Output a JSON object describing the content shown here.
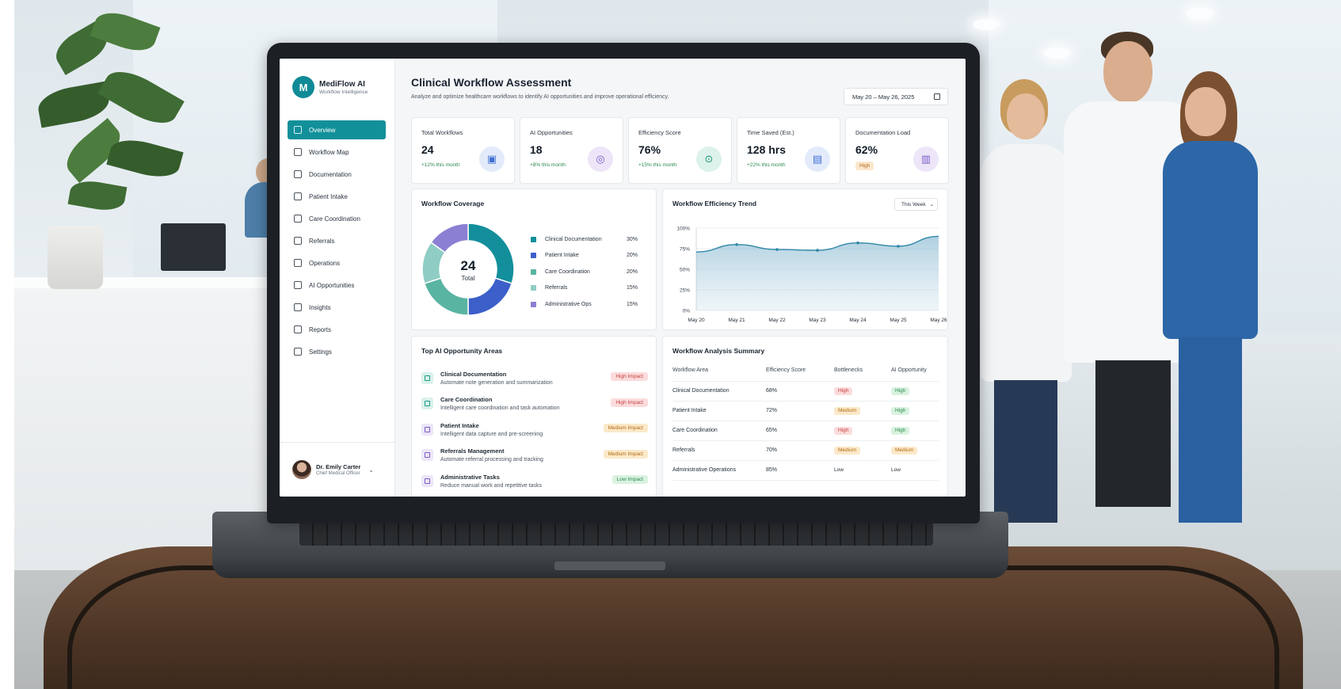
{
  "brand": {
    "name": "MediFlow AI",
    "subtitle": "Workflow Intelligence",
    "logo": "M"
  },
  "nav": [
    {
      "label": "Overview",
      "icon": "home-icon",
      "active": true
    },
    {
      "label": "Workflow Map",
      "icon": "workflow-icon",
      "active": false
    },
    {
      "label": "Documentation",
      "icon": "document-icon",
      "active": false
    },
    {
      "label": "Patient Intake",
      "icon": "patient-icon",
      "active": false
    },
    {
      "label": "Care Coordination",
      "icon": "care-icon",
      "active": false
    },
    {
      "label": "Referrals",
      "icon": "referral-icon",
      "active": false
    },
    {
      "label": "Operations",
      "icon": "operations-icon",
      "active": false
    },
    {
      "label": "AI Opportunities",
      "icon": "ai-icon",
      "active": false
    },
    {
      "label": "Insights",
      "icon": "insights-icon",
      "active": false
    },
    {
      "label": "Reports",
      "icon": "reports-icon",
      "active": false
    },
    {
      "label": "Settings",
      "icon": "gear-icon",
      "active": false
    }
  ],
  "user": {
    "name": "Dr. Emily Carter",
    "role": "Chief Medical Officer"
  },
  "header": {
    "title": "Clinical Workflow Assessment",
    "subtitle": "Analyze and optimize healthcare workflows to identify AI opportunities and improve operational efficiency.",
    "date_range": "May 20 – May 26, 2025"
  },
  "kpis": [
    {
      "label": "Total Workflows",
      "value": "24",
      "change": "+12% this month",
      "icon": "clipboard-icon",
      "icon_color": "#3f6fd1",
      "icon_bg": "#e3ebfb",
      "glyph": "▣"
    },
    {
      "label": "AI Opportunities",
      "value": "18",
      "change": "+8% this month",
      "icon": "target-icon",
      "icon_color": "#7d5bc8",
      "icon_bg": "#ece6f8",
      "glyph": "◎"
    },
    {
      "label": "Efficiency Score",
      "value": "76%",
      "change": "+15% this month",
      "icon": "gauge-icon",
      "icon_color": "#1f9a7a",
      "icon_bg": "#dcf2ea",
      "glyph": "⊙"
    },
    {
      "label": "Time Saved (Est.)",
      "value": "128 hrs",
      "change": "+22% this month",
      "icon": "clock-icon",
      "icon_color": "#3f6fd1",
      "icon_bg": "#e3ebfb",
      "glyph": "▤"
    },
    {
      "label": "Documentation Load",
      "value": "62%",
      "badge": "High",
      "icon": "document-load-icon",
      "icon_color": "#7d5bc8",
      "icon_bg": "#ece6f8",
      "glyph": "▥"
    }
  ],
  "coverage": {
    "title": "Workflow Coverage",
    "center_value": "24",
    "center_label": "Total",
    "segments": [
      {
        "label": "Clinical Documentation",
        "value": "30%",
        "pct": 30,
        "color": "#138f9b"
      },
      {
        "label": "Patient Intake",
        "value": "20%",
        "pct": 20,
        "color": "#3c5fc9"
      },
      {
        "label": "Care Coordination",
        "value": "20%",
        "pct": 20,
        "color": "#5ab4a2"
      },
      {
        "label": "Referrals",
        "value": "15%",
        "pct": 15,
        "color": "#8fcdc4"
      },
      {
        "label": "Administrative Ops",
        "value": "15%",
        "pct": 15,
        "color": "#8a7fd2"
      }
    ]
  },
  "trend": {
    "title": "Workflow Efficiency Trend",
    "period": "This Week"
  },
  "chart_data": {
    "type": "area",
    "title": "Workflow Efficiency Trend",
    "x": [
      "May 20",
      "May 21",
      "May 22",
      "May 23",
      "May 24",
      "May 25",
      "May 26"
    ],
    "series": [
      {
        "values": [
          71,
          80,
          74,
          73,
          82,
          78,
          90
        ]
      }
    ],
    "yticks": [
      "100%",
      "75%",
      "50%",
      "25%",
      "0%"
    ],
    "ylim": [
      0,
      100
    ],
    "grid": true
  },
  "opportunities": {
    "title": "Top AI Opportunity Areas",
    "items": [
      {
        "title": "Clinical Documentation",
        "desc": "Automate note generation and summarization",
        "impact": "High Impact",
        "icon_color": "#1b9a86",
        "icon_bg": "#d9f1eb",
        "impact_bg": "#fbdcdc",
        "impact_color": "#c8403f"
      },
      {
        "title": "Care Coordination",
        "desc": "Intelligent care coordination and task automation",
        "impact": "High Impact",
        "icon_color": "#1b9a86",
        "icon_bg": "#d9f1eb",
        "impact_bg": "#fbdcdc",
        "impact_color": "#c8403f"
      },
      {
        "title": "Patient Intake",
        "desc": "Intelligent data capture and pre-screening",
        "impact": "Medium Impact",
        "icon_color": "#7d5bc8",
        "icon_bg": "#ece6f8",
        "impact_bg": "#fbe9c9",
        "impact_color": "#b56b12"
      },
      {
        "title": "Referrals Management",
        "desc": "Automate referral processing and tracking",
        "impact": "Medium Impact",
        "icon_color": "#7d5bc8",
        "icon_bg": "#ece6f8",
        "impact_bg": "#fbe9c9",
        "impact_color": "#b56b12"
      },
      {
        "title": "Administrative Tasks",
        "desc": "Reduce manual work and repetitive tasks",
        "impact": "Low Impact",
        "icon_color": "#7d5bc8",
        "icon_bg": "#ece6f8",
        "impact_bg": "#d9f2e0",
        "impact_color": "#2b8a4f"
      }
    ]
  },
  "summary": {
    "title": "Workflow Analysis Summary",
    "columns": [
      "Workflow Area",
      "Efficiency Score",
      "Bottlenecks",
      "AI Opportunity"
    ],
    "rows": [
      {
        "area": "Clinical Documentation",
        "score": "68%",
        "bottlenecks": "High",
        "ai": "High"
      },
      {
        "area": "Patient Intake",
        "score": "72%",
        "bottlenecks": "Medium",
        "ai": "High"
      },
      {
        "area": "Care Coordination",
        "score": "65%",
        "bottlenecks": "High",
        "ai": "High"
      },
      {
        "area": "Referrals",
        "score": "70%",
        "bottlenecks": "Medium",
        "ai": "Medium"
      },
      {
        "area": "Administrative Operations",
        "score": "85%",
        "bottlenecks": "Low",
        "ai": "Low"
      }
    ]
  }
}
